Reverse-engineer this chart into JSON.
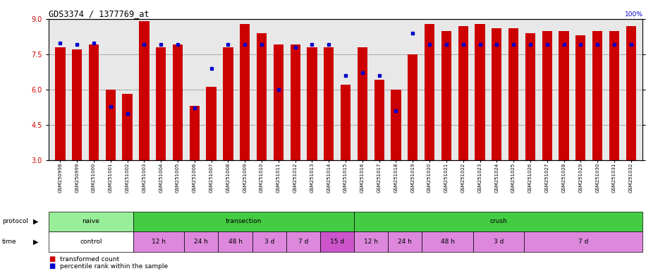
{
  "title": "GDS3374 / 1377769_at",
  "samples": [
    "GSM250998",
    "GSM250999",
    "GSM251000",
    "GSM251001",
    "GSM251002",
    "GSM251003",
    "GSM251004",
    "GSM251005",
    "GSM251006",
    "GSM251007",
    "GSM251008",
    "GSM251009",
    "GSM251010",
    "GSM251011",
    "GSM251012",
    "GSM251013",
    "GSM251014",
    "GSM251015",
    "GSM251016",
    "GSM251017",
    "GSM251018",
    "GSM251019",
    "GSM251020",
    "GSM251021",
    "GSM251022",
    "GSM251023",
    "GSM251024",
    "GSM251025",
    "GSM251026",
    "GSM251027",
    "GSM251028",
    "GSM251029",
    "GSM251030",
    "GSM251031",
    "GSM251032"
  ],
  "transformed_count": [
    7.8,
    7.7,
    7.9,
    6.0,
    5.8,
    8.9,
    7.8,
    7.9,
    5.3,
    6.1,
    7.8,
    8.8,
    8.4,
    7.9,
    7.9,
    7.8,
    7.8,
    6.2,
    7.8,
    6.4,
    6.0,
    7.5,
    8.8,
    8.5,
    8.7,
    8.8,
    8.6,
    8.6,
    8.4,
    8.5,
    8.5,
    8.3,
    8.5,
    8.5,
    8.7
  ],
  "percentile_rank": [
    83,
    82,
    83,
    38,
    33,
    82,
    82,
    82,
    37,
    65,
    82,
    82,
    82,
    50,
    80,
    82,
    82,
    60,
    62,
    60,
    35,
    90,
    82,
    82,
    82,
    82,
    82,
    82,
    82,
    82,
    82,
    82,
    82,
    82,
    82
  ],
  "ylim_left": [
    3,
    9
  ],
  "ylim_right": [
    0,
    100
  ],
  "yticks_left": [
    3,
    4.5,
    6,
    7.5,
    9
  ],
  "yticks_right": [
    0,
    25,
    50,
    75,
    100
  ],
  "bar_color": "#cc0000",
  "dot_color": "#0000cc",
  "bar_width": 0.6,
  "bg_color": "#e8e8e8",
  "proto_group_data": [
    {
      "label": "naive",
      "start": 0,
      "end": 5,
      "color": "#99ee99"
    },
    {
      "label": "transection",
      "start": 5,
      "end": 18,
      "color": "#44cc44"
    },
    {
      "label": "crush",
      "start": 18,
      "end": 35,
      "color": "#44cc44"
    }
  ],
  "time_group_data": [
    {
      "label": "control",
      "start": 0,
      "end": 5,
      "color": "#ffffff"
    },
    {
      "label": "12 h",
      "start": 5,
      "end": 8,
      "color": "#dd88dd"
    },
    {
      "label": "24 h",
      "start": 8,
      "end": 10,
      "color": "#dd88dd"
    },
    {
      "label": "48 h",
      "start": 10,
      "end": 12,
      "color": "#dd88dd"
    },
    {
      "label": "3 d",
      "start": 12,
      "end": 14,
      "color": "#dd88dd"
    },
    {
      "label": "7 d",
      "start": 14,
      "end": 16,
      "color": "#dd88dd"
    },
    {
      "label": "15 d",
      "start": 16,
      "end": 18,
      "color": "#cc55cc"
    },
    {
      "label": "12 h",
      "start": 18,
      "end": 20,
      "color": "#dd88dd"
    },
    {
      "label": "24 h",
      "start": 20,
      "end": 22,
      "color": "#dd88dd"
    },
    {
      "label": "48 h",
      "start": 22,
      "end": 25,
      "color": "#dd88dd"
    },
    {
      "label": "3 d",
      "start": 25,
      "end": 28,
      "color": "#dd88dd"
    },
    {
      "label": "7 d",
      "start": 28,
      "end": 35,
      "color": "#dd88dd"
    }
  ],
  "legend_items": [
    {
      "label": "transformed count",
      "color": "#cc0000"
    },
    {
      "label": "percentile rank within the sample",
      "color": "#0000cc"
    }
  ]
}
